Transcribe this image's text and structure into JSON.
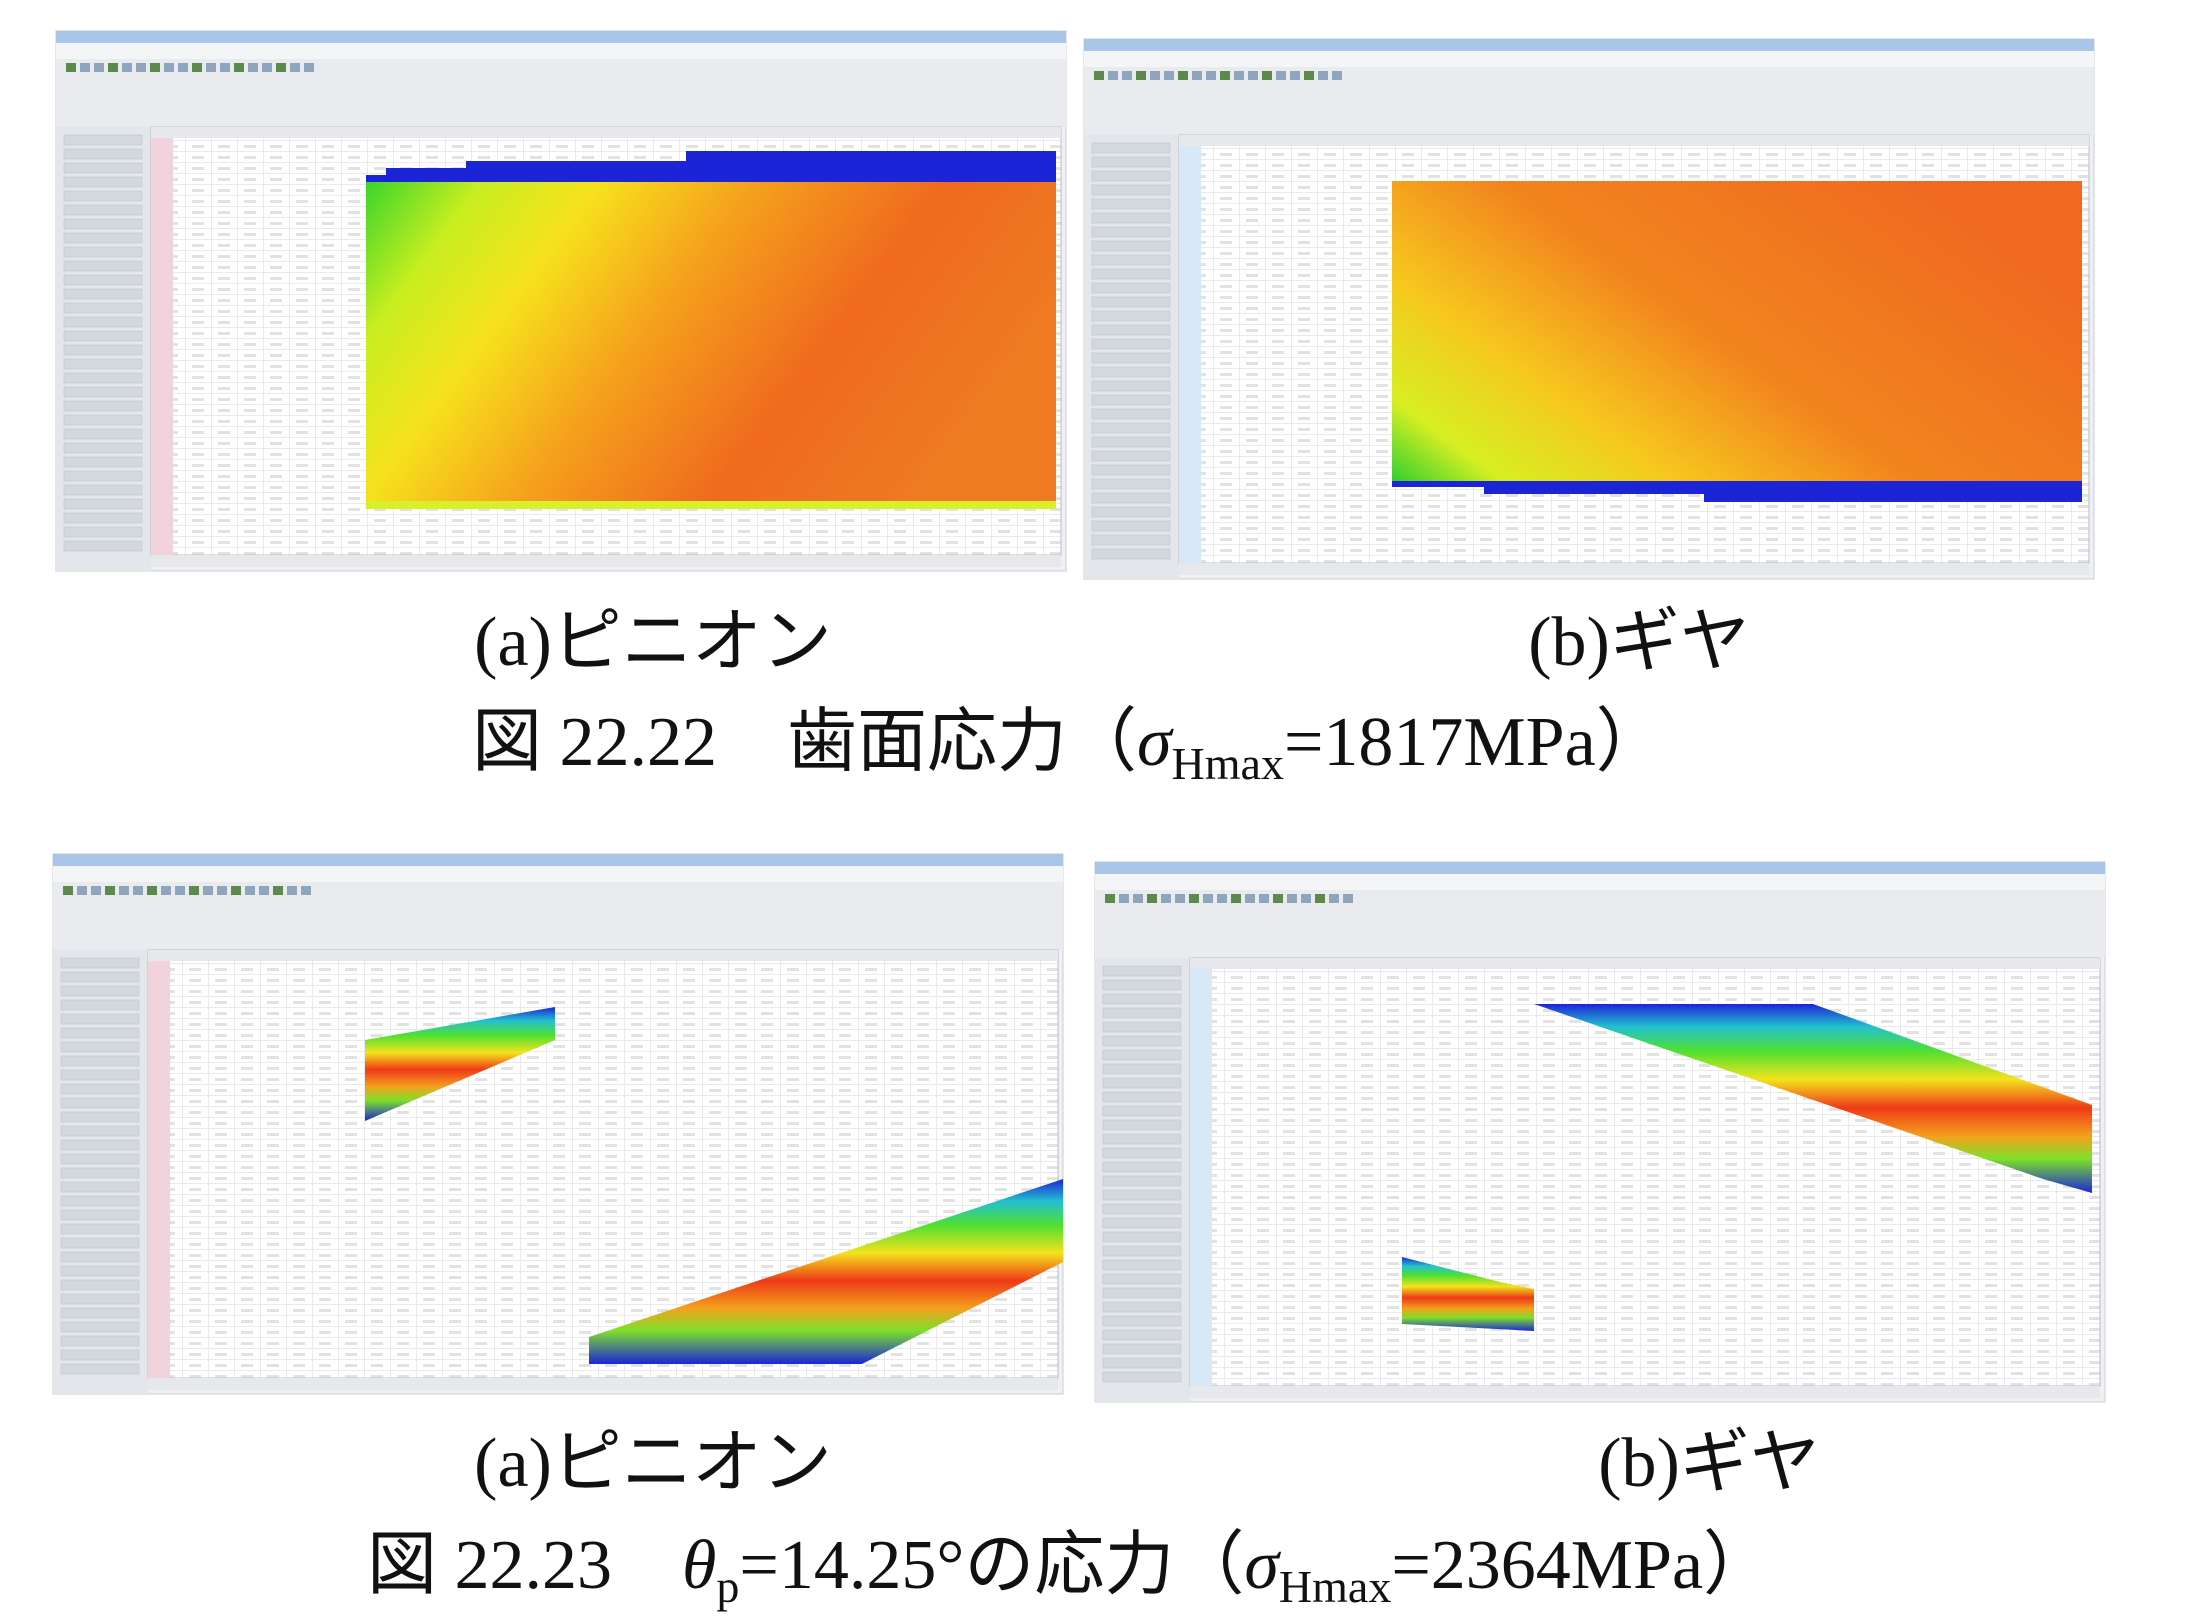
{
  "figures": [
    {
      "panels": [
        {
          "label": "(a)ピニオン"
        },
        {
          "label": "(b)ギヤ"
        }
      ],
      "caption": [
        "図 22.22　歯面応力（",
        "σ",
        "Hmax",
        "=1817MPa）"
      ]
    },
    {
      "panels": [
        {
          "label": "(a)ピニオン"
        },
        {
          "label": "(b)ギヤ"
        }
      ],
      "caption": [
        "図 22.23　",
        "θ",
        "p",
        "=14.25°の応力（",
        "σ",
        "Hmax",
        "=2364MPa）"
      ]
    }
  ]
}
